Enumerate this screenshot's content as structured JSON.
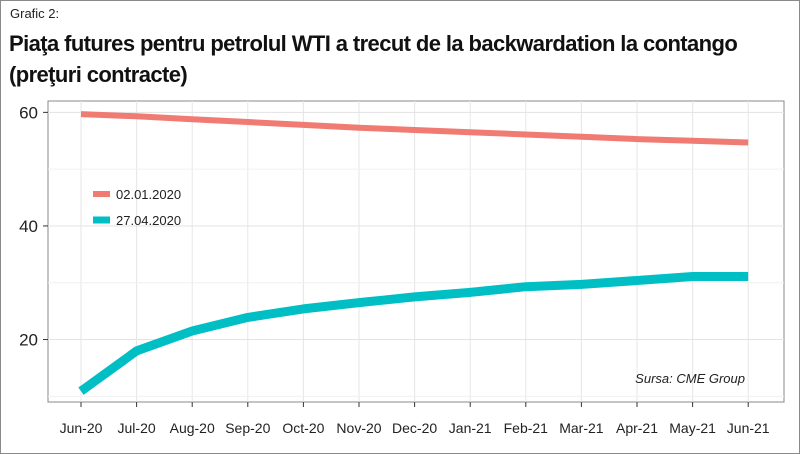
{
  "figure": {
    "label": "Grafic 2:",
    "title": "Piaţa futures pentru petrolul WTI a trecut de la backwardation la contango (preţuri contracte)",
    "source": "Sursa: CME Group"
  },
  "chart_data": {
    "type": "line",
    "title": "Piaţa futures pentru petrolul WTI a trecut de la backwardation la contango (preţuri contracte)",
    "xlabel": "",
    "ylabel": "",
    "categories": [
      "Jun-20",
      "Jul-20",
      "Aug-20",
      "Sep-20",
      "Oct-20",
      "Nov-20",
      "Dec-20",
      "Jan-21",
      "Feb-21",
      "Mar-21",
      "Apr-21",
      "May-21",
      "Jun-21"
    ],
    "yticks": [
      20,
      40,
      60
    ],
    "ylim": [
      9,
      62
    ],
    "grid": true,
    "legend_position": "left",
    "series": [
      {
        "name": "02.01.2020",
        "color": "#f07b72",
        "values": [
          59.7,
          59.3,
          58.8,
          58.3,
          57.8,
          57.3,
          56.9,
          56.5,
          56.1,
          55.7,
          55.3,
          55.0,
          54.7
        ]
      },
      {
        "name": "27.04.2020",
        "color": "#00bfc4",
        "values": [
          10.9,
          18.0,
          21.5,
          23.9,
          25.4,
          26.5,
          27.5,
          28.3,
          29.3,
          29.7,
          30.4,
          31.1,
          31.1
        ]
      }
    ]
  }
}
